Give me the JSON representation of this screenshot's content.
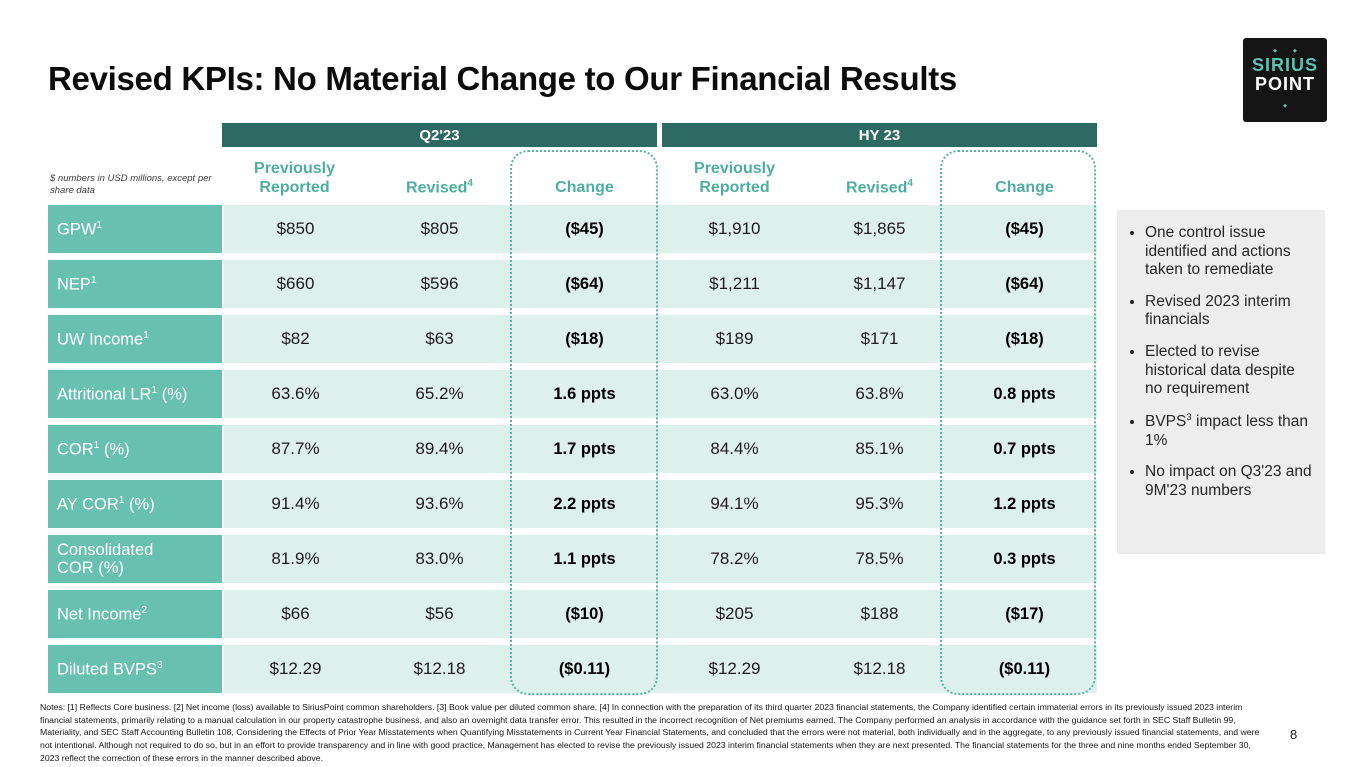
{
  "slide": {
    "title": "Revised KPIs: No Material Change to Our Financial Results",
    "page_number": "8",
    "logo": {
      "line1": "SIRIUS",
      "line2": "POINT"
    },
    "icons": {
      "diamond_dot": "◆"
    },
    "colors": {
      "header_dark_teal": "#2D6B62",
      "row_label_teal": "#68C0B1",
      "row_bg_light": "#DEF0EB",
      "accent_teal_text": "#4FAEA0",
      "dotted_outline": "#55B4A4",
      "sidebar_bg": "#EDEDED",
      "logo_teal": "#5EC1B1"
    },
    "table": {
      "unit_note": "$ numbers in USD millions, except per share data",
      "groups": [
        {
          "label": "Q2'23"
        },
        {
          "label": "HY 23"
        }
      ],
      "col_headers": {
        "prev": "Previously Reported",
        "revised": "Revised",
        "revised_sup": "4",
        "change": "Change"
      },
      "rows": [
        {
          "label": "GPW",
          "sup": "1",
          "suffix": "",
          "label2": "",
          "q2_prev": "$850",
          "q2_revised": "$805",
          "q2_change": "($45)",
          "hy_prev": "$1,910",
          "hy_revised": "$1,865",
          "hy_change": "($45)"
        },
        {
          "label": "NEP",
          "sup": "1",
          "suffix": "",
          "label2": "",
          "q2_prev": "$660",
          "q2_revised": "$596",
          "q2_change": "($64)",
          "hy_prev": "$1,211",
          "hy_revised": "$1,147",
          "hy_change": "($64)"
        },
        {
          "label": "UW Income",
          "sup": "1",
          "suffix": "",
          "label2": "",
          "q2_prev": "$82",
          "q2_revised": "$63",
          "q2_change": "($18)",
          "hy_prev": "$189",
          "hy_revised": "$171",
          "hy_change": "($18)"
        },
        {
          "label": "Attritional LR",
          "sup": "1",
          "suffix": " (%)",
          "label2": "",
          "q2_prev": "63.6%",
          "q2_revised": "65.2%",
          "q2_change": "1.6 ppts",
          "hy_prev": "63.0%",
          "hy_revised": "63.8%",
          "hy_change": "0.8 ppts"
        },
        {
          "label": "COR",
          "sup": "1",
          "suffix": " (%)",
          "label2": "",
          "q2_prev": "87.7%",
          "q2_revised": "89.4%",
          "q2_change": "1.7 ppts",
          "hy_prev": "84.4%",
          "hy_revised": "85.1%",
          "hy_change": "0.7 ppts"
        },
        {
          "label": "AY COR",
          "sup": "1",
          "suffix": " (%)",
          "label2": "",
          "q2_prev": "91.4%",
          "q2_revised": "93.6%",
          "q2_change": "2.2 ppts",
          "hy_prev": "94.1%",
          "hy_revised": "95.3%",
          "hy_change": "1.2 ppts"
        },
        {
          "label": "Consolidated",
          "sup": "",
          "suffix": "",
          "label2": "COR (%)",
          "q2_prev": "81.9%",
          "q2_revised": "83.0%",
          "q2_change": "1.1 ppts",
          "hy_prev": "78.2%",
          "hy_revised": "78.5%",
          "hy_change": "0.3 ppts"
        },
        {
          "label": "Net Income",
          "sup": "2",
          "suffix": "",
          "label2": "",
          "q2_prev": "$66",
          "q2_revised": "$56",
          "q2_change": "($10)",
          "hy_prev": "$205",
          "hy_revised": "$188",
          "hy_change": "($17)"
        },
        {
          "label": "Diluted BVPS",
          "sup": "3",
          "suffix": "",
          "label2": "",
          "q2_prev": "$12.29",
          "q2_revised": "$12.18",
          "q2_change": "($0.11)",
          "hy_prev": "$12.29",
          "hy_revised": "$12.18",
          "hy_change": "($0.11)"
        }
      ]
    },
    "sidebar": {
      "bullets": [
        {
          "pre": "One control issue identified and actions taken to remediate",
          "sup": "",
          "post": ""
        },
        {
          "pre": "Revised 2023 interim financials",
          "sup": "",
          "post": ""
        },
        {
          "pre": "Elected to revise historical data despite no requirement",
          "sup": "",
          "post": ""
        },
        {
          "pre": "BVPS",
          "sup": "3",
          "post": " impact less than 1%"
        },
        {
          "pre": "No impact on Q3'23 and 9M'23 numbers",
          "sup": "",
          "post": ""
        }
      ]
    },
    "notes": "Notes: [1] Reflects Core business. [2] Net income (loss) available to SiriusPoint common shareholders. [3] Book value per diluted common share. [4] In connection with the preparation of its third quarter 2023 financial statements, the Company identified certain immaterial errors in its previously issued 2023 interim financial statements, primarily relating to a manual calculation in our property catastrophe business, and also an overnight data transfer error. This resulted in the incorrect recognition of Net premiums earned. The Company performed an analysis in accordance with the guidance set forth in SEC Staff Bulletin 99, Materiality, and SEC Staff Accounting Bulletin 108, Considering the Effects of Prior Year Misstatements when Quantifying Misstatements in Current Year Financial Statements, and concluded that the errors were not material, both individually and in the aggregate, to any previously issued financial statements, and were not intentional. Although not required to do so, but in an effort to provide transparency and in line with good practice, Management has elected to revise the previously issued 2023 interim financial statements when they are next presented. The financial statements for the three and nine months ended September 30, 2023 reflect the correction of these errors in the manner described above."
  }
}
